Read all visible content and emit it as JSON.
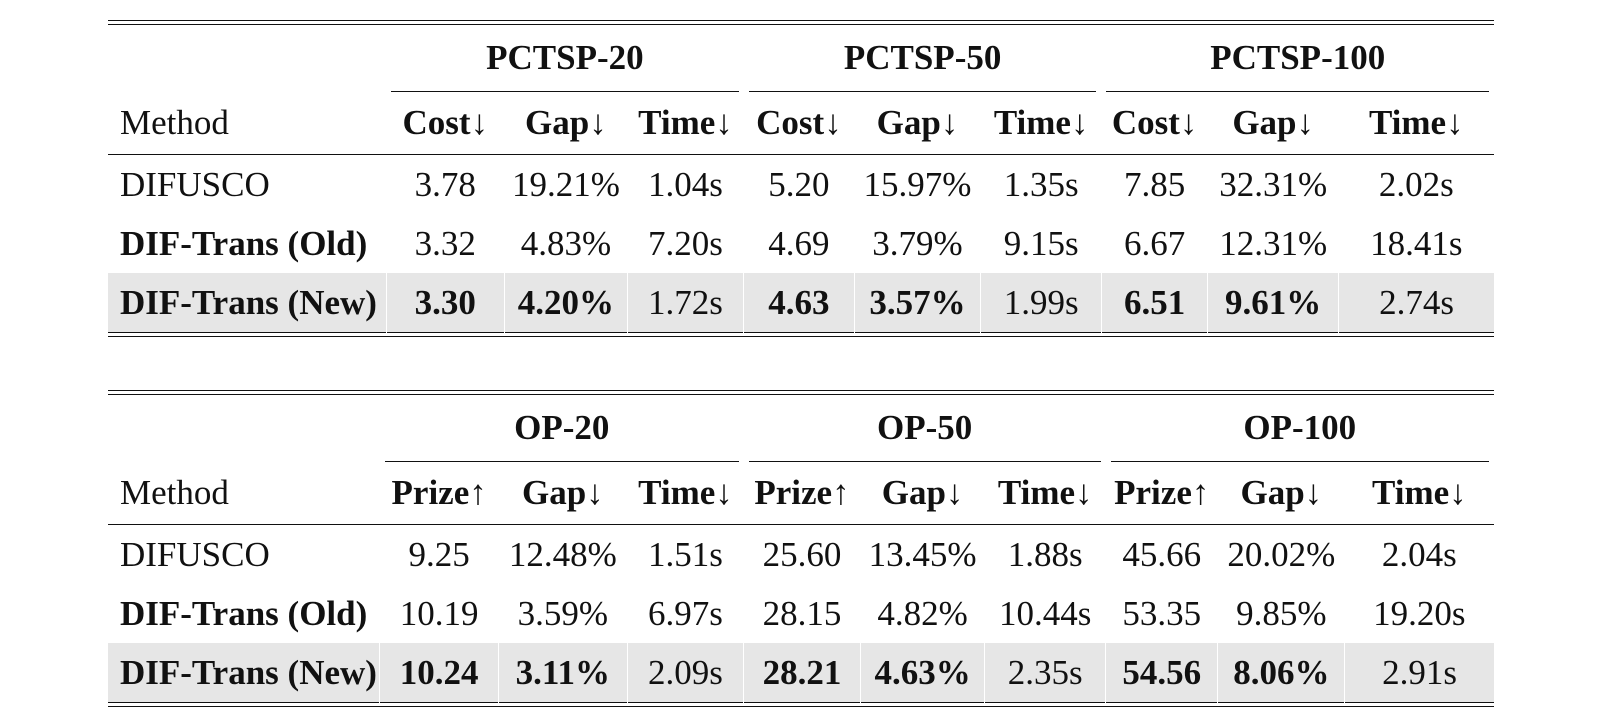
{
  "tables": [
    {
      "method_header": "Method",
      "groups": [
        "PCTSP-20",
        "PCTSP-50",
        "PCTSP-100"
      ],
      "metric_headers": [
        "Cost↓",
        "Gap↓",
        "Time↓",
        "Cost↓",
        "Gap↓",
        "Time↓",
        "Cost↓",
        "Gap↓",
        "Time↓"
      ],
      "rows": [
        {
          "method": "DIFUSCO",
          "cells": [
            "3.78",
            "19.21%",
            "1.04s",
            "5.20",
            "15.97%",
            "1.35s",
            "7.85",
            "32.31%",
            "2.02s"
          ]
        },
        {
          "method": "DIF-Trans (Old)",
          "cells": [
            "3.32",
            "4.83%",
            "7.20s",
            "4.69",
            "3.79%",
            "9.15s",
            "6.67",
            "12.31%",
            "18.41s"
          ]
        },
        {
          "method": "DIF-Trans (New)",
          "cells": [
            "3.30",
            "4.20%",
            "1.72s",
            "4.63",
            "3.57%",
            "1.99s",
            "6.51",
            "9.61%",
            "2.74s"
          ]
        }
      ]
    },
    {
      "method_header": "Method",
      "groups": [
        "OP-20",
        "OP-50",
        "OP-100"
      ],
      "metric_headers": [
        "Prize↑",
        "Gap↓",
        "Time↓",
        "Prize↑",
        "Gap↓",
        "Time↓",
        "Prize↑",
        "Gap↓",
        "Time↓"
      ],
      "rows": [
        {
          "method": "DIFUSCO",
          "cells": [
            "9.25",
            "12.48%",
            "1.51s",
            "25.60",
            "13.45%",
            "1.88s",
            "45.66",
            "20.02%",
            "2.04s"
          ]
        },
        {
          "method": "DIF-Trans (Old)",
          "cells": [
            "10.19",
            "3.59%",
            "6.97s",
            "28.15",
            "4.82%",
            "10.44s",
            "53.35",
            "9.85%",
            "19.20s"
          ]
        },
        {
          "method": "DIF-Trans (New)",
          "cells": [
            "10.24",
            "3.11%",
            "2.09s",
            "28.21",
            "4.63%",
            "2.35s",
            "54.56",
            "8.06%",
            "2.91s"
          ]
        }
      ]
    }
  ]
}
